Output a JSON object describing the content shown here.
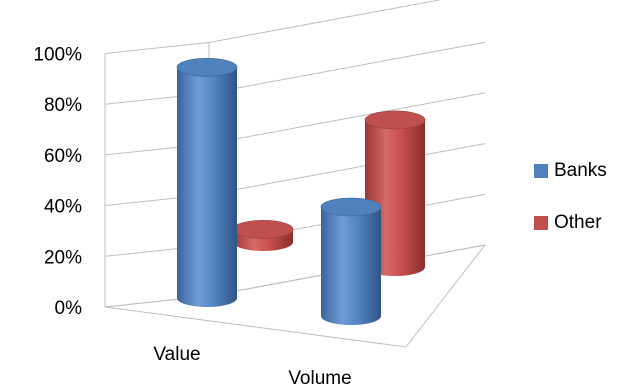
{
  "chart_data": {
    "type": "bar",
    "style": "3d-cylinder",
    "categories": [
      "Value",
      "Volume"
    ],
    "series": [
      {
        "name": "Banks",
        "color": "#4F81BD",
        "values": [
          91,
          43
        ]
      },
      {
        "name": "Other",
        "color": "#C0504D",
        "values": [
          5,
          58
        ]
      }
    ],
    "ylim": [
      0,
      100
    ],
    "yticks": [
      "0%",
      "20%",
      "40%",
      "60%",
      "80%",
      "100%"
    ],
    "grid": true,
    "legend_position": "right",
    "title": "",
    "xlabel": "",
    "ylabel": ""
  }
}
